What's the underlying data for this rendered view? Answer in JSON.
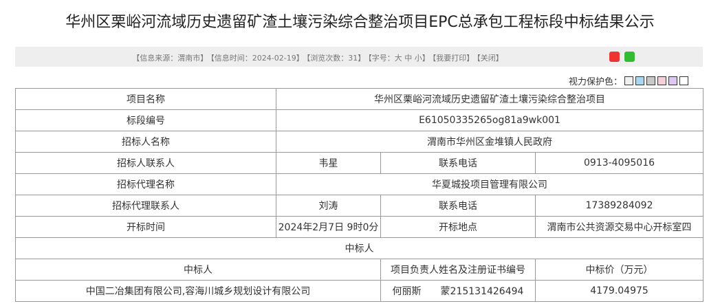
{
  "title": "华州区栗峪河流域历史遗留矿渣土壤污染综合整治项目EPC总承包工程标段中标结果公示",
  "info": {
    "source": "【信息来源：渭南市】",
    "time": "【信息时间：2024-02-19】",
    "views": "【浏览次数：31】",
    "fontsize": "【字号：大 中 小】",
    "print": "【我要打印】",
    "close": "【关闭】"
  },
  "eye_label": "视力保护色：",
  "eye_colors": [
    "#f0f0f0",
    "#a8d8f0",
    "#c8c8c8",
    "#f4d0d8",
    "#dcc8f0",
    "#ffffff"
  ],
  "rows": {
    "project_name": {
      "label": "项目名称",
      "value": "华州区栗峪河流域历史遗留矿渣土壤污染综合整治项目"
    },
    "section_no": {
      "label": "标段编号",
      "value": "E61050335265og81a9wk001"
    },
    "tenderer": {
      "label": "招标人名称",
      "value": "渭南市华州区金堆镇人民政府"
    },
    "tenderer_contact": {
      "label": "招标人联系人",
      "value": "韦星",
      "phone_label": "联系电话",
      "phone": "0913-4095016"
    },
    "agency": {
      "label": "招标代理名称",
      "value": "华夏城投项目管理有限公司"
    },
    "agency_contact": {
      "label": "招标代理联系人",
      "value": "刘涛",
      "phone_label": "联系电话",
      "phone": "17389284092"
    },
    "opening": {
      "label": "开标时间",
      "value": "2024年2月7日 9时0分",
      "place_label": "开标地点",
      "place": "渭南市公共资源交易中心开标室四"
    }
  },
  "winner_section": "中标人",
  "winner_headers": [
    "中标人",
    "项目负责人姓名及注册证书编号",
    "中标价（万元）"
  ],
  "winner": {
    "name": "中国二冶集团有限公司,容海川城乡规划设计有限公司",
    "manager": "何丽斯　　蒙215131426494",
    "price": "4179.04975"
  }
}
